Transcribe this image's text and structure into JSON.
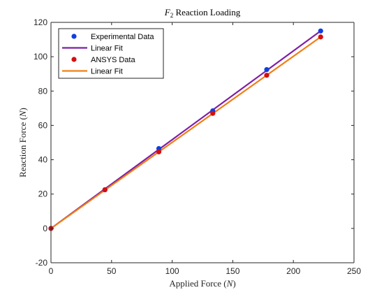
{
  "chart_data": {
    "type": "scatter",
    "title_main": "F",
    "title_sub": "2",
    "title_rest": " Reaction Loading",
    "xlabel_text": "Applied Force (",
    "xlabel_unit": "N",
    "xlabel_close": ")",
    "ylabel_text": "Reaction Force (",
    "ylabel_unit": "N",
    "ylabel_close": ")",
    "xlim": [
      0,
      250
    ],
    "ylim": [
      -20,
      120
    ],
    "xticks": [
      0,
      50,
      100,
      150,
      200,
      250
    ],
    "yticks": [
      -20,
      0,
      20,
      40,
      60,
      80,
      100,
      120
    ],
    "grid": false,
    "legend_position": "top-left",
    "series": [
      {
        "name": "Experimental Data",
        "kind": "points",
        "color": "#0e3fe0",
        "x": [
          0,
          44.5,
          89,
          133.5,
          178,
          222.5
        ],
        "y": [
          0,
          22.5,
          46.5,
          68.5,
          92.5,
          115
        ]
      },
      {
        "name": "Linear Fit",
        "kind": "line",
        "color": "#7e1fa6",
        "x": [
          0,
          222.5
        ],
        "y": [
          0,
          115
        ]
      },
      {
        "name": "ANSYS Data",
        "kind": "points",
        "color": "#d40f0f",
        "x": [
          0,
          44.5,
          89,
          133.5,
          178,
          222.5
        ],
        "y": [
          0,
          22.5,
          44.6,
          67,
          89.2,
          111.5
        ]
      },
      {
        "name": "Linear Fit",
        "kind": "line",
        "color": "#f07f16",
        "x": [
          0,
          222.5
        ],
        "y": [
          0,
          111.5
        ]
      }
    ]
  }
}
